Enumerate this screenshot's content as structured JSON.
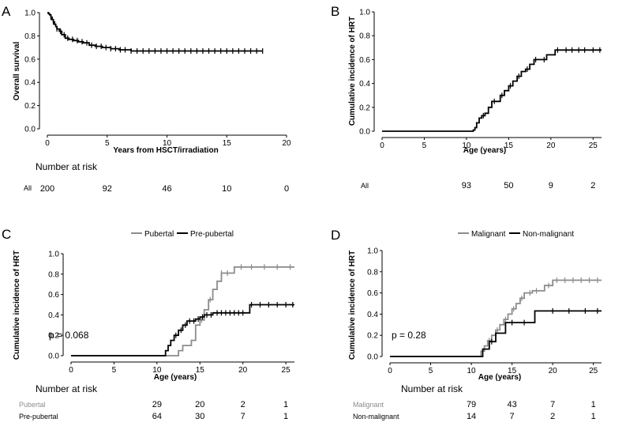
{
  "chart_data": [
    {
      "panel": "A",
      "type": "line",
      "subtype": "kaplan-meier",
      "xlabel": "Years from HSCT/irradiation",
      "ylabel": "Overall survival",
      "xlim": [
        0,
        20
      ],
      "ylim": [
        0,
        1
      ],
      "xticks": [
        "0",
        "5",
        "10",
        "15",
        "20"
      ],
      "yticks": [
        "0.0",
        "0.2",
        "0.4",
        "0.6",
        "0.8",
        "1.0"
      ],
      "series": [
        {
          "name": "All",
          "color": "#000000",
          "points": [
            [
              0,
              1.0
            ],
            [
              0.1,
              0.99
            ],
            [
              0.2,
              0.98
            ],
            [
              0.3,
              0.96
            ],
            [
              0.4,
              0.94
            ],
            [
              0.5,
              0.92
            ],
            [
              0.6,
              0.9
            ],
            [
              0.7,
              0.88
            ],
            [
              0.8,
              0.86
            ],
            [
              1.0,
              0.84
            ],
            [
              1.2,
              0.81
            ],
            [
              1.5,
              0.78
            ],
            [
              1.8,
              0.77
            ],
            [
              2.2,
              0.76
            ],
            [
              2.6,
              0.75
            ],
            [
              3.0,
              0.74
            ],
            [
              3.5,
              0.72
            ],
            [
              4.0,
              0.71
            ],
            [
              4.6,
              0.7
            ],
            [
              5.3,
              0.69
            ],
            [
              6.0,
              0.68
            ],
            [
              7.0,
              0.67
            ],
            [
              18.0,
              0.67
            ]
          ],
          "censor": [
            0.3,
            0.5,
            0.8,
            1.1,
            1.4,
            1.7,
            2.1,
            2.5,
            2.9,
            3.3,
            3.7,
            4.1,
            4.5,
            4.9,
            5.3,
            5.7,
            6.1,
            6.5,
            7.0,
            7.5,
            8.0,
            8.5,
            9.0,
            9.5,
            10.0,
            10.5,
            11.0,
            11.5,
            12.0,
            12.5,
            13.0,
            13.5,
            14.0,
            14.5,
            15.0,
            15.5,
            16.0,
            16.5,
            17.0,
            17.5,
            18.0
          ]
        }
      ],
      "risk_table": {
        "title": "Number at risk",
        "times": [
          0,
          5,
          10,
          15,
          20
        ],
        "rows": [
          {
            "label": "All",
            "values": [
              "200",
              "92",
              "46",
              "10",
              "0"
            ]
          }
        ]
      }
    },
    {
      "panel": "B",
      "type": "line",
      "subtype": "cumulative-incidence",
      "xlabel": "Age (years)",
      "ylabel": "Cumulative incidence of HRT",
      "xlim": [
        0,
        26
      ],
      "ylim": [
        0,
        1
      ],
      "xticks": [
        "0",
        "5",
        "10",
        "15",
        "20",
        "25"
      ],
      "yticks": [
        "0.0",
        "0.2",
        "0.4",
        "0.6",
        "0.8",
        "1.0"
      ],
      "series": [
        {
          "name": "All",
          "color": "#000000",
          "points": [
            [
              0,
              0
            ],
            [
              10.5,
              0
            ],
            [
              10.8,
              0.01
            ],
            [
              11.0,
              0.03
            ],
            [
              11.2,
              0.07
            ],
            [
              11.5,
              0.11
            ],
            [
              11.8,
              0.13
            ],
            [
              12.2,
              0.15
            ],
            [
              12.6,
              0.2
            ],
            [
              13.0,
              0.25
            ],
            [
              13.5,
              0.25
            ],
            [
              14.0,
              0.3
            ],
            [
              14.5,
              0.34
            ],
            [
              15.0,
              0.38
            ],
            [
              15.5,
              0.42
            ],
            [
              16.0,
              0.46
            ],
            [
              16.5,
              0.5
            ],
            [
              17.0,
              0.52
            ],
            [
              17.5,
              0.56
            ],
            [
              18.0,
              0.6
            ],
            [
              19.0,
              0.6
            ],
            [
              19.5,
              0.64
            ],
            [
              20.5,
              0.68
            ],
            [
              26,
              0.68
            ]
          ],
          "censor": [
            12.0,
            13.3,
            14.2,
            15.2,
            16.2,
            17.2,
            18.2,
            19.2,
            20.8,
            21.8,
            22.5,
            23.3,
            24.0,
            25.0,
            25.8
          ]
        }
      ],
      "risk_table": {
        "title": "",
        "times": [
          10,
          15,
          20,
          25
        ],
        "rows": [
          {
            "label": "All",
            "values": [
              "93",
              "50",
              "9",
              "2"
            ]
          }
        ]
      }
    },
    {
      "panel": "C",
      "type": "line",
      "subtype": "cumulative-incidence",
      "xlabel": "Age (years)",
      "ylabel": "Cumulative incidence of HRT",
      "xlim": [
        0,
        26
      ],
      "ylim": [
        0,
        1
      ],
      "xticks": [
        "0",
        "5",
        "10",
        "15",
        "20",
        "25"
      ],
      "yticks": [
        "0.0",
        "0.2",
        "0.4",
        "0.6",
        "0.8",
        "1.0"
      ],
      "legend": {
        "placement": "top"
      },
      "annotation": "p = 0.068",
      "series": [
        {
          "name": "Pubertal",
          "color": "#8c8c8c",
          "points": [
            [
              0,
              0
            ],
            [
              12.0,
              0
            ],
            [
              12.5,
              0.05
            ],
            [
              13.0,
              0.1
            ],
            [
              14.0,
              0.15
            ],
            [
              14.5,
              0.3
            ],
            [
              15.0,
              0.35
            ],
            [
              15.5,
              0.45
            ],
            [
              16.0,
              0.55
            ],
            [
              16.5,
              0.65
            ],
            [
              17.0,
              0.73
            ],
            [
              17.5,
              0.81
            ],
            [
              18.5,
              0.81
            ],
            [
              19.0,
              0.87
            ],
            [
              26,
              0.87
            ]
          ],
          "censor": [
            15.2,
            16.2,
            17.5,
            18.2,
            19.8,
            21.0,
            22.5,
            24.0,
            25.5
          ]
        },
        {
          "name": "Pre-pubertal",
          "color": "#000000",
          "points": [
            [
              0,
              0
            ],
            [
              10.5,
              0
            ],
            [
              11.0,
              0.05
            ],
            [
              11.3,
              0.1
            ],
            [
              11.6,
              0.15
            ],
            [
              12.0,
              0.2
            ],
            [
              12.5,
              0.25
            ],
            [
              13.0,
              0.3
            ],
            [
              13.5,
              0.34
            ],
            [
              14.5,
              0.36
            ],
            [
              15.0,
              0.38
            ],
            [
              15.5,
              0.4
            ],
            [
              16.5,
              0.42
            ],
            [
              20.5,
              0.42
            ],
            [
              20.8,
              0.5
            ],
            [
              26,
              0.5
            ]
          ],
          "censor": [
            12.2,
            12.8,
            13.3,
            13.8,
            14.3,
            14.8,
            15.3,
            15.8,
            16.3,
            17.0,
            17.5,
            18.0,
            18.5,
            19.0,
            19.5,
            20.0,
            21.0,
            22.0,
            23.0,
            24.0,
            25.0,
            25.8
          ]
        }
      ],
      "risk_table": {
        "title": "Number at risk",
        "times": [
          10,
          15,
          20,
          25
        ],
        "rows": [
          {
            "label": "Pubertal",
            "color": "#8c8c8c",
            "values": [
              "29",
              "20",
              "2",
              "1"
            ]
          },
          {
            "label": "Pre-pubertal",
            "color": "#000000",
            "values": [
              "64",
              "30",
              "7",
              "1"
            ]
          }
        ]
      }
    },
    {
      "panel": "D",
      "type": "line",
      "subtype": "cumulative-incidence",
      "xlabel": "Age (years)",
      "ylabel": "Cumulative incidence of HRT",
      "xlim": [
        0,
        26
      ],
      "ylim": [
        0,
        1
      ],
      "xticks": [
        "0",
        "5",
        "10",
        "15",
        "20",
        "25"
      ],
      "yticks": [
        "0.0",
        "0.2",
        "0.4",
        "0.6",
        "0.8",
        "1.0"
      ],
      "legend": {
        "placement": "top"
      },
      "annotation": "p = 0.28",
      "series": [
        {
          "name": "Malignant",
          "color": "#8c8c8c",
          "points": [
            [
              0,
              0
            ],
            [
              10.8,
              0
            ],
            [
              11.2,
              0.05
            ],
            [
              11.6,
              0.1
            ],
            [
              12.0,
              0.15
            ],
            [
              12.5,
              0.2
            ],
            [
              13.0,
              0.25
            ],
            [
              13.5,
              0.3
            ],
            [
              14.0,
              0.35
            ],
            [
              14.5,
              0.4
            ],
            [
              15.0,
              0.45
            ],
            [
              15.5,
              0.5
            ],
            [
              16.0,
              0.55
            ],
            [
              16.5,
              0.6
            ],
            [
              17.5,
              0.62
            ],
            [
              18.5,
              0.62
            ],
            [
              19.0,
              0.67
            ],
            [
              20.0,
              0.72
            ],
            [
              26,
              0.72
            ]
          ],
          "censor": [
            12.2,
            13.2,
            14.2,
            15.2,
            16.2,
            17.2,
            18.0,
            19.5,
            20.5,
            21.5,
            22.5,
            23.5,
            24.5,
            25.5
          ]
        },
        {
          "name": "Non-malignant",
          "color": "#000000",
          "points": [
            [
              0,
              0
            ],
            [
              11.0,
              0
            ],
            [
              11.4,
              0.07
            ],
            [
              12.2,
              0.14
            ],
            [
              13.0,
              0.22
            ],
            [
              14.0,
              0.22
            ],
            [
              14.2,
              0.32
            ],
            [
              17.5,
              0.32
            ],
            [
              17.8,
              0.43
            ],
            [
              26,
              0.43
            ]
          ],
          "censor": [
            12.5,
            15.0,
            16.5,
            20.0,
            22.0,
            24.0,
            25.5
          ]
        }
      ],
      "risk_table": {
        "title": "Number at risk",
        "times": [
          10,
          15,
          20,
          25
        ],
        "rows": [
          {
            "label": "Malignant",
            "color": "#8c8c8c",
            "values": [
              "79",
              "43",
              "7",
              "1"
            ]
          },
          {
            "label": "Non-malignant",
            "color": "#000000",
            "values": [
              "14",
              "7",
              "2",
              "1"
            ]
          }
        ]
      }
    }
  ]
}
